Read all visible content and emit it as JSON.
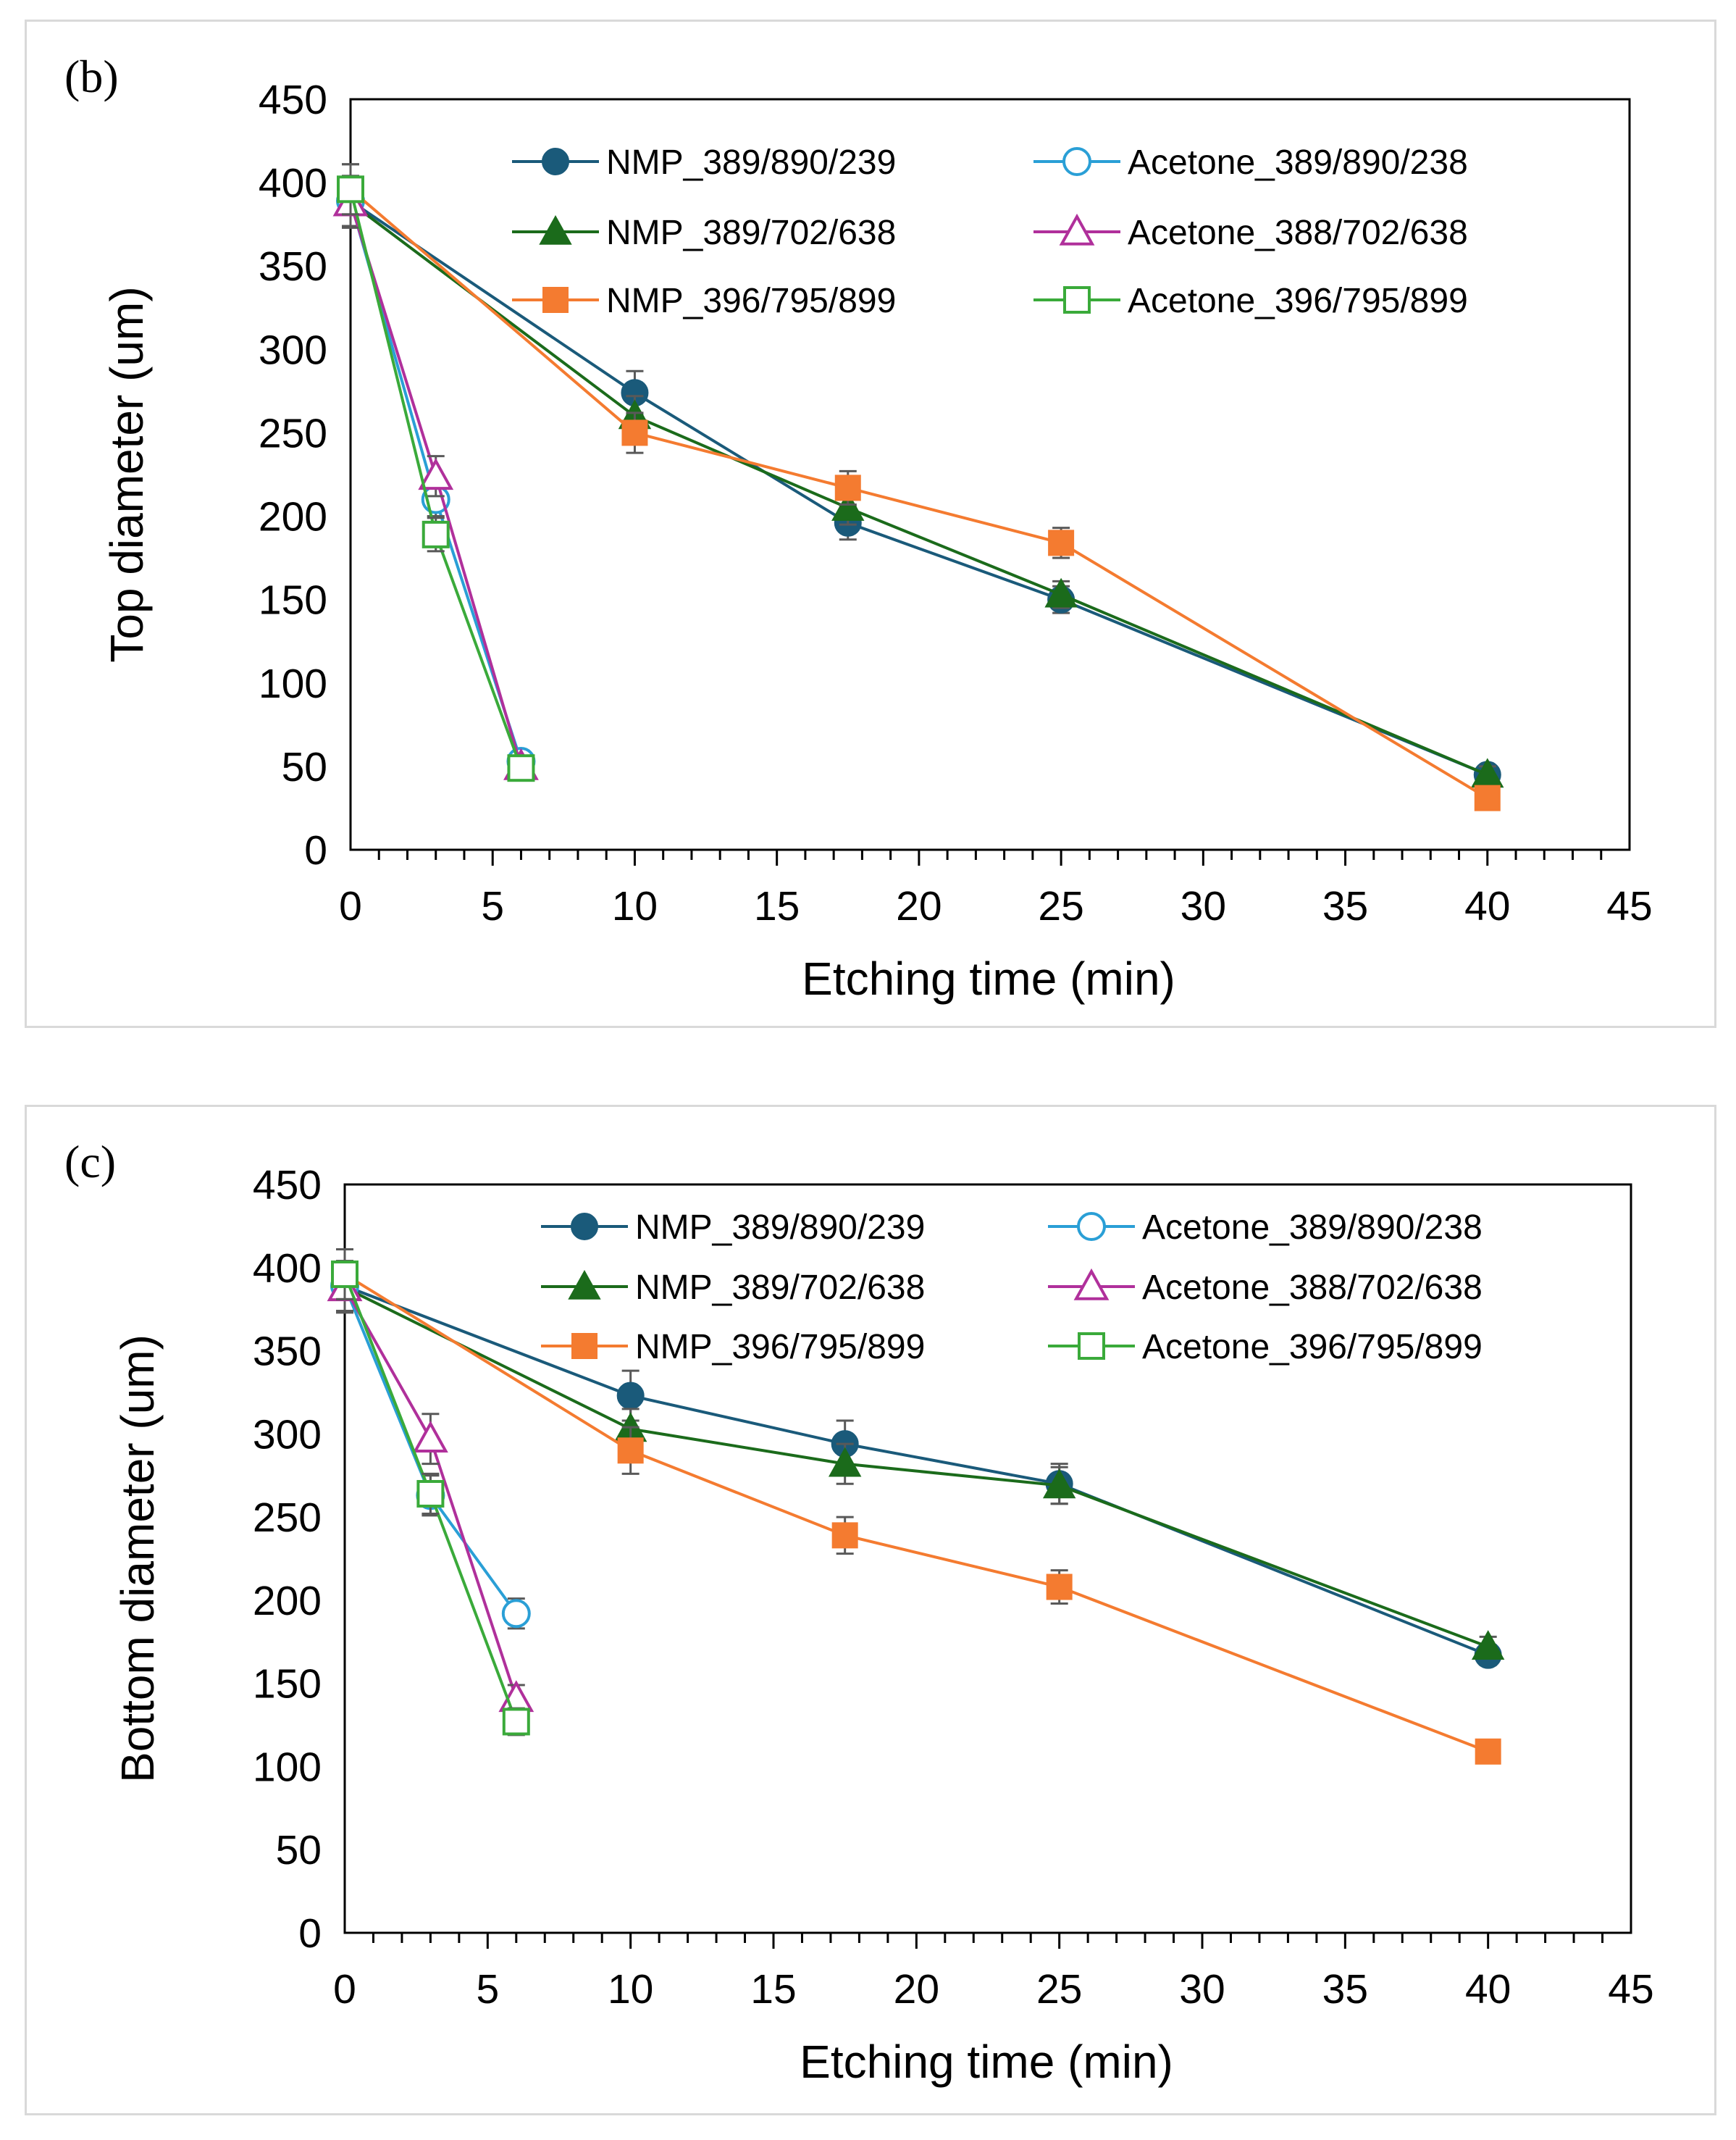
{
  "chart_data": [
    {
      "type": "line",
      "panel_label": "(b)",
      "title": "",
      "xlabel": "Etching time (min)",
      "ylabel": "Top diameter (um)",
      "xlim": [
        0,
        45
      ],
      "ylim": [
        0,
        450
      ],
      "xticks": [
        "0",
        "5",
        "10",
        "15",
        "20",
        "25",
        "30",
        "35",
        "40",
        "45"
      ],
      "yticks": [
        "0",
        "50",
        "100",
        "150",
        "200",
        "250",
        "300",
        "350",
        "400",
        "450"
      ],
      "grid": false,
      "legend_position": "top-right",
      "series": [
        {
          "name": "NMP_389/890/239",
          "color": "#1a5a7a",
          "marker": "circle",
          "filled": true,
          "x": [
            0,
            10,
            17.5,
            25,
            40
          ],
          "y": [
            389,
            274,
            196,
            150,
            45
          ],
          "err": [
            15,
            13,
            10,
            8,
            5
          ]
        },
        {
          "name": "Acetone_389/890/238",
          "color": "#2a9fd6",
          "marker": "circle",
          "filled": false,
          "x": [
            0,
            3,
            6
          ],
          "y": [
            389,
            210,
            53
          ],
          "err": [
            15,
            10,
            4
          ]
        },
        {
          "name": "NMP_389/702/638",
          "color": "#1b6b1b",
          "marker": "triangle",
          "filled": true,
          "x": [
            0,
            10,
            17.5,
            25,
            40
          ],
          "y": [
            388,
            260,
            205,
            153,
            45
          ],
          "err": [
            15,
            12,
            10,
            8,
            5
          ]
        },
        {
          "name": "Acetone_388/702/638",
          "color": "#b0309b",
          "marker": "triangle",
          "filled": false,
          "x": [
            0,
            3,
            6
          ],
          "y": [
            388,
            224,
            50
          ],
          "err": [
            15,
            12,
            4
          ]
        },
        {
          "name": "NMP_396/795/899",
          "color": "#f47b30",
          "marker": "square",
          "filled": true,
          "x": [
            0,
            10,
            17.5,
            25,
            40
          ],
          "y": [
            396,
            250,
            217,
            184,
            31
          ],
          "err": [
            15,
            12,
            10,
            9,
            4
          ]
        },
        {
          "name": "Acetone_396/795/899",
          "color": "#3aaa3a",
          "marker": "square",
          "filled": false,
          "x": [
            0,
            3,
            6
          ],
          "y": [
            396,
            189,
            49
          ],
          "err": [
            15,
            10,
            4
          ]
        }
      ]
    },
    {
      "type": "line",
      "panel_label": "(c)",
      "title": "",
      "xlabel": "Etching time (min)",
      "ylabel": "Bottom diameter (um)",
      "xlim": [
        0,
        45
      ],
      "ylim": [
        0,
        450
      ],
      "xticks": [
        "0",
        "5",
        "10",
        "15",
        "20",
        "25",
        "30",
        "35",
        "40",
        "45"
      ],
      "yticks": [
        "0",
        "50",
        "100",
        "150",
        "200",
        "250",
        "300",
        "350",
        "400",
        "450"
      ],
      "grid": false,
      "legend_position": "top-right",
      "series": [
        {
          "name": "NMP_389/890/239",
          "color": "#1a5a7a",
          "marker": "circle",
          "filled": true,
          "x": [
            0,
            10,
            17.5,
            25,
            40
          ],
          "y": [
            389,
            323,
            294,
            270,
            167
          ],
          "err": [
            15,
            15,
            14,
            12,
            6
          ]
        },
        {
          "name": "Acetone_389/890/238",
          "color": "#2a9fd6",
          "marker": "circle",
          "filled": false,
          "x": [
            0,
            3,
            6
          ],
          "y": [
            389,
            263,
            192
          ],
          "err": [
            15,
            12,
            9
          ]
        },
        {
          "name": "NMP_389/702/638",
          "color": "#1b6b1b",
          "marker": "triangle",
          "filled": true,
          "x": [
            0,
            10,
            17.5,
            25,
            40
          ],
          "y": [
            388,
            303,
            282,
            269,
            172
          ],
          "err": [
            15,
            12,
            12,
            11,
            6
          ]
        },
        {
          "name": "Acetone_388/702/638",
          "color": "#b0309b",
          "marker": "triangle",
          "filled": false,
          "x": [
            0,
            3,
            6
          ],
          "y": [
            388,
            297,
            141
          ],
          "err": [
            15,
            15,
            8
          ]
        },
        {
          "name": "NMP_396/795/899",
          "color": "#f47b30",
          "marker": "square",
          "filled": true,
          "x": [
            0,
            10,
            17.5,
            25,
            40
          ],
          "y": [
            396,
            290,
            239,
            208,
            109
          ],
          "err": [
            15,
            14,
            11,
            10,
            5
          ]
        },
        {
          "name": "Acetone_396/795/899",
          "color": "#3aaa3a",
          "marker": "square",
          "filled": false,
          "x": [
            0,
            3,
            6
          ],
          "y": [
            396,
            264,
            127
          ],
          "err": [
            15,
            12,
            8
          ]
        }
      ]
    }
  ]
}
